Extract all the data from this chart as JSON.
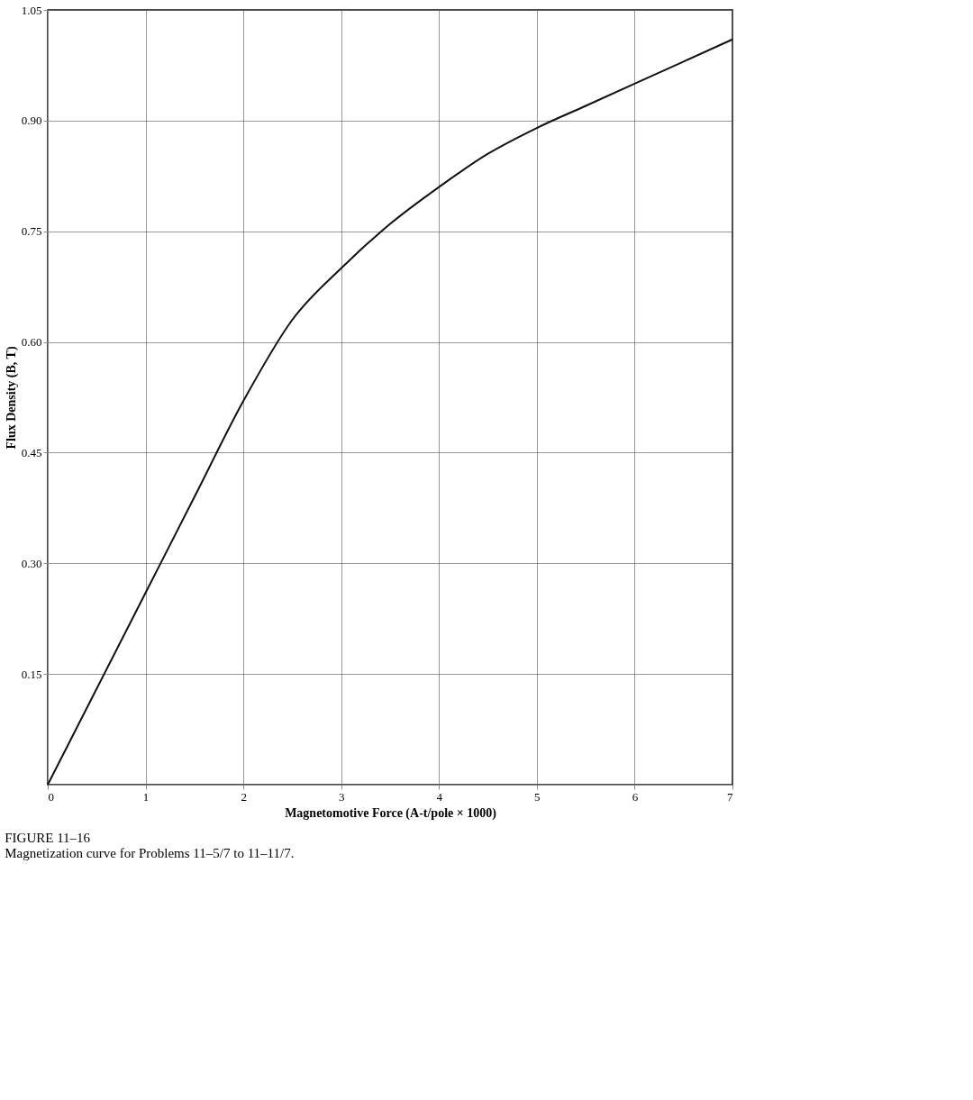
{
  "chart_data": {
    "type": "line",
    "xlabel": "Magnetomotive Force (A-t/pole × 1000)",
    "ylabel": "Flux Density (B, T)",
    "annotations": [
      "FIGURE 11–16",
      "Magnetization curve for Problems 11–5/7 to 11–11/7."
    ],
    "x": [
      0,
      0.5,
      1,
      1.5,
      2,
      2.5,
      3,
      3.5,
      4,
      4.5,
      5,
      5.5,
      6,
      6.5,
      7
    ],
    "series": [
      {
        "color": "#111111",
        "values": [
          0,
          0.13,
          0.26,
          0.39,
          0.52,
          0.63,
          0.7,
          0.76,
          0.81,
          0.855,
          0.89,
          0.92,
          0.95,
          0.98,
          1.01
        ]
      }
    ],
    "xlim": [
      0,
      7
    ],
    "xticks": [
      0,
      1,
      2,
      3,
      4,
      5,
      6,
      7
    ],
    "ylim": [
      0,
      1.05
    ],
    "yticks": [
      {
        "value": 0.15,
        "label": "0.15"
      },
      {
        "value": 0.3,
        "label": "0.30"
      },
      {
        "value": 0.45,
        "label": "0.45"
      },
      {
        "value": 0.6,
        "label": "0.60"
      },
      {
        "value": 0.75,
        "label": "0.75"
      },
      {
        "value": 0.9,
        "label": "0.90"
      },
      {
        "value": 1.05,
        "label": "1.05"
      }
    ],
    "grid": true,
    "marker": "none",
    "line_style": "solid"
  }
}
